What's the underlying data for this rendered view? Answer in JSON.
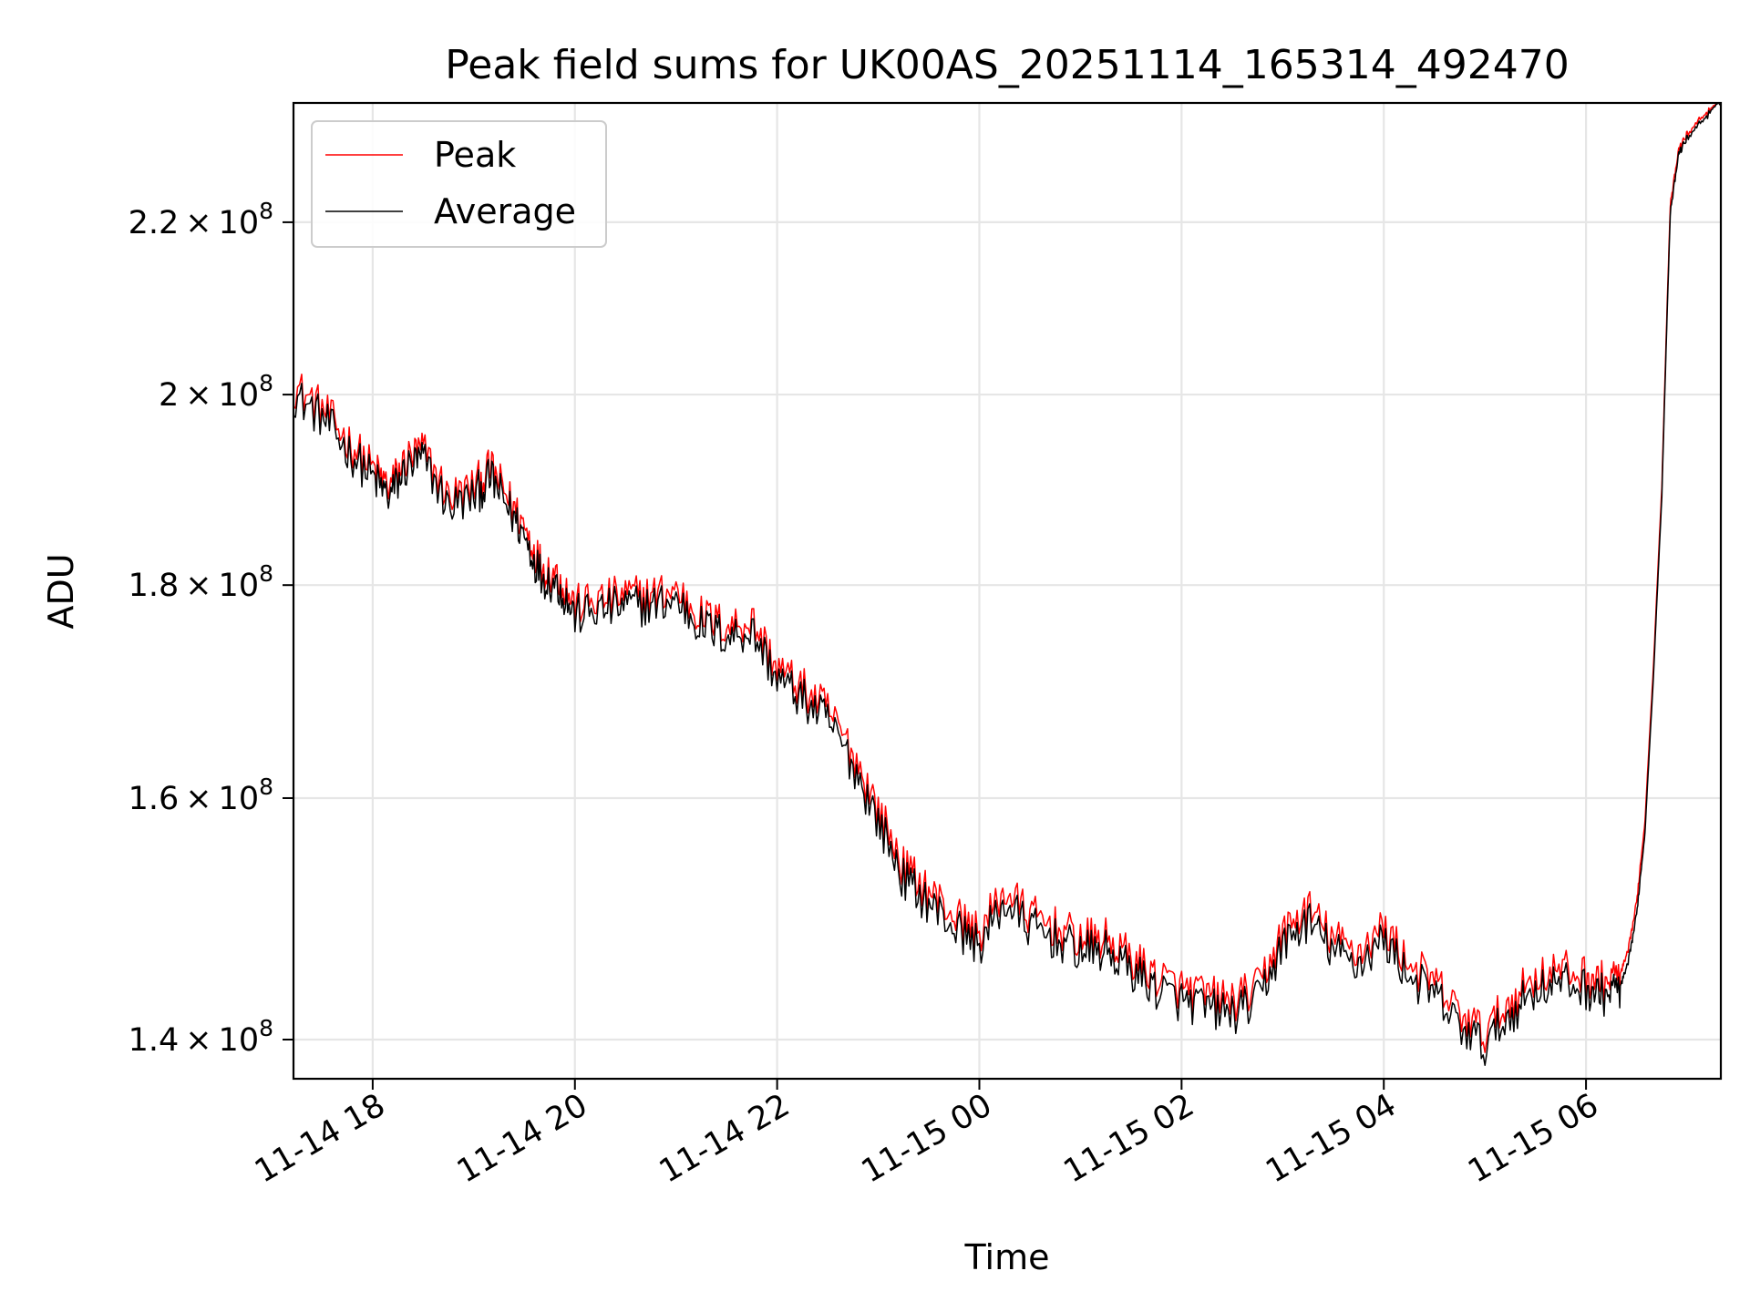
{
  "chart_data": {
    "type": "line",
    "title": "Peak field sums for UK00AS_20251114_165314_492470",
    "xlabel": "Time",
    "ylabel": "ADU",
    "x_axis": {
      "kind": "datetime",
      "range": [
        "2025-11-14T17:13",
        "2025-11-15T07:20"
      ],
      "ticks": [
        {
          "value": "2025-11-14T18:00",
          "label": "11-14 18"
        },
        {
          "value": "2025-11-14T20:00",
          "label": "11-14 20"
        },
        {
          "value": "2025-11-14T22:00",
          "label": "11-14 22"
        },
        {
          "value": "2025-11-15T00:00",
          "label": "11-15 00"
        },
        {
          "value": "2025-11-15T02:00",
          "label": "11-15 02"
        },
        {
          "value": "2025-11-15T04:00",
          "label": "11-15 04"
        },
        {
          "value": "2025-11-15T06:00",
          "label": "11-15 06"
        }
      ]
    },
    "y_axis": {
      "scale": "log",
      "range": [
        137000000,
        235000000
      ],
      "ticks": [
        {
          "value": 140000000,
          "mantissa": "1.4",
          "exp": "8"
        },
        {
          "value": 160000000,
          "mantissa": "1.6",
          "exp": "8"
        },
        {
          "value": 180000000,
          "mantissa": "1.8",
          "exp": "8"
        },
        {
          "value": 200000000,
          "mantissa": "2",
          "exp": "8"
        },
        {
          "value": 220000000,
          "mantissa": "2.2",
          "exp": "8"
        }
      ],
      "times": "×",
      "base": "10"
    },
    "grid": true,
    "legend": "top-left",
    "series": [
      {
        "name": "Peak",
        "color": "#ff0000",
        "x": [
          "2025-11-14T17:13",
          "2025-11-14T17:30",
          "2025-11-14T17:45",
          "2025-11-14T18:00",
          "2025-11-14T18:10",
          "2025-11-14T18:20",
          "2025-11-14T18:30",
          "2025-11-14T18:45",
          "2025-11-14T19:00",
          "2025-11-14T19:10",
          "2025-11-14T19:20",
          "2025-11-14T19:30",
          "2025-11-14T19:40",
          "2025-11-14T19:50",
          "2025-11-14T20:00",
          "2025-11-14T20:15",
          "2025-11-14T20:30",
          "2025-11-14T20:45",
          "2025-11-14T21:00",
          "2025-11-14T21:15",
          "2025-11-14T21:30",
          "2025-11-14T21:45",
          "2025-11-14T22:00",
          "2025-11-14T22:15",
          "2025-11-14T22:30",
          "2025-11-14T22:45",
          "2025-11-14T23:00",
          "2025-11-14T23:15",
          "2025-11-14T23:30",
          "2025-11-14T23:45",
          "2025-11-15T00:00",
          "2025-11-15T00:15",
          "2025-11-15T00:30",
          "2025-11-15T00:45",
          "2025-11-15T01:00",
          "2025-11-15T01:15",
          "2025-11-15T01:30",
          "2025-11-15T01:45",
          "2025-11-15T02:00",
          "2025-11-15T02:15",
          "2025-11-15T02:30",
          "2025-11-15T02:45",
          "2025-11-15T03:00",
          "2025-11-15T03:15",
          "2025-11-15T03:30",
          "2025-11-15T03:45",
          "2025-11-15T04:00",
          "2025-11-15T04:15",
          "2025-11-15T04:30",
          "2025-11-15T04:45",
          "2025-11-15T05:00",
          "2025-11-15T05:15",
          "2025-11-15T05:30",
          "2025-11-15T05:45",
          "2025-11-15T06:00",
          "2025-11-15T06:10",
          "2025-11-15T06:20",
          "2025-11-15T06:25",
          "2025-11-15T06:30",
          "2025-11-15T06:35",
          "2025-11-15T06:40",
          "2025-11-15T06:45",
          "2025-11-15T06:50",
          "2025-11-15T06:55",
          "2025-11-15T07:00",
          "2025-11-15T07:10",
          "2025-11-15T07:20"
        ],
        "values": [
          201000000,
          198500000,
          195000000,
          192000000,
          190000000,
          193000000,
          194000000,
          189000000,
          190000000,
          192000000,
          189000000,
          186000000,
          182000000,
          181000000,
          178000000,
          178500000,
          179000000,
          179000000,
          179500000,
          177000000,
          176000000,
          176500000,
          172000000,
          170000000,
          168000000,
          164000000,
          159000000,
          154000000,
          152000000,
          150000000,
          148500000,
          152000000,
          150000000,
          149000000,
          148000000,
          148000000,
          146500000,
          145000000,
          144000000,
          143500000,
          143000000,
          144000000,
          148500000,
          150500000,
          148000000,
          147000000,
          149000000,
          146000000,
          144500000,
          142000000,
          140500000,
          143000000,
          145000000,
          145500000,
          145000000,
          144500000,
          145000000,
          147000000,
          151000000,
          158000000,
          172000000,
          190000000,
          222000000,
          229000000,
          231000000,
          233500000,
          235000000
        ]
      },
      {
        "name": "Average",
        "color": "#000000",
        "x": [
          "2025-11-14T17:13",
          "2025-11-14T17:30",
          "2025-11-14T17:45",
          "2025-11-14T18:00",
          "2025-11-14T18:10",
          "2025-11-14T18:20",
          "2025-11-14T18:30",
          "2025-11-14T18:45",
          "2025-11-14T19:00",
          "2025-11-14T19:10",
          "2025-11-14T19:20",
          "2025-11-14T19:30",
          "2025-11-14T19:40",
          "2025-11-14T19:50",
          "2025-11-14T20:00",
          "2025-11-14T20:15",
          "2025-11-14T20:30",
          "2025-11-14T20:45",
          "2025-11-14T21:00",
          "2025-11-14T21:15",
          "2025-11-14T21:30",
          "2025-11-14T21:45",
          "2025-11-14T22:00",
          "2025-11-14T22:15",
          "2025-11-14T22:30",
          "2025-11-14T22:45",
          "2025-11-14T23:00",
          "2025-11-14T23:15",
          "2025-11-14T23:30",
          "2025-11-14T23:45",
          "2025-11-15T00:00",
          "2025-11-15T00:15",
          "2025-11-15T00:30",
          "2025-11-15T00:45",
          "2025-11-15T01:00",
          "2025-11-15T01:15",
          "2025-11-15T01:30",
          "2025-11-15T01:45",
          "2025-11-15T02:00",
          "2025-11-15T02:15",
          "2025-11-15T02:30",
          "2025-11-15T02:45",
          "2025-11-15T03:00",
          "2025-11-15T03:15",
          "2025-11-15T03:30",
          "2025-11-15T03:45",
          "2025-11-15T04:00",
          "2025-11-15T04:15",
          "2025-11-15T04:30",
          "2025-11-15T04:45",
          "2025-11-15T05:00",
          "2025-11-15T05:15",
          "2025-11-15T05:30",
          "2025-11-15T05:45",
          "2025-11-15T06:00",
          "2025-11-15T06:10",
          "2025-11-15T06:20",
          "2025-11-15T06:25",
          "2025-11-15T06:30",
          "2025-11-15T06:35",
          "2025-11-15T06:40",
          "2025-11-15T06:45",
          "2025-11-15T06:50",
          "2025-11-15T06:55",
          "2025-11-15T07:00",
          "2025-11-15T07:10",
          "2025-11-15T07:20"
        ],
        "values": [
          200000000,
          197500000,
          194000000,
          191000000,
          189000000,
          192000000,
          193000000,
          188000000,
          189000000,
          191000000,
          188000000,
          185000000,
          181000000,
          180000000,
          177000000,
          177500000,
          178000000,
          178000000,
          178500000,
          176000000,
          175000000,
          175500000,
          171000000,
          169000000,
          167000000,
          163000000,
          158000000,
          153000000,
          151000000,
          149000000,
          147500000,
          151000000,
          149000000,
          148000000,
          147000000,
          147000000,
          145500000,
          144000000,
          143000000,
          142500000,
          142000000,
          143000000,
          147500000,
          149500000,
          147000000,
          146000000,
          148000000,
          145000000,
          143500000,
          141000000,
          139500000,
          142000000,
          144000000,
          144500000,
          144000000,
          143500000,
          144000000,
          146000000,
          150000000,
          157000000,
          171000000,
          189000000,
          221000000,
          228500000,
          230500000,
          233000000,
          235000000
        ]
      }
    ]
  }
}
